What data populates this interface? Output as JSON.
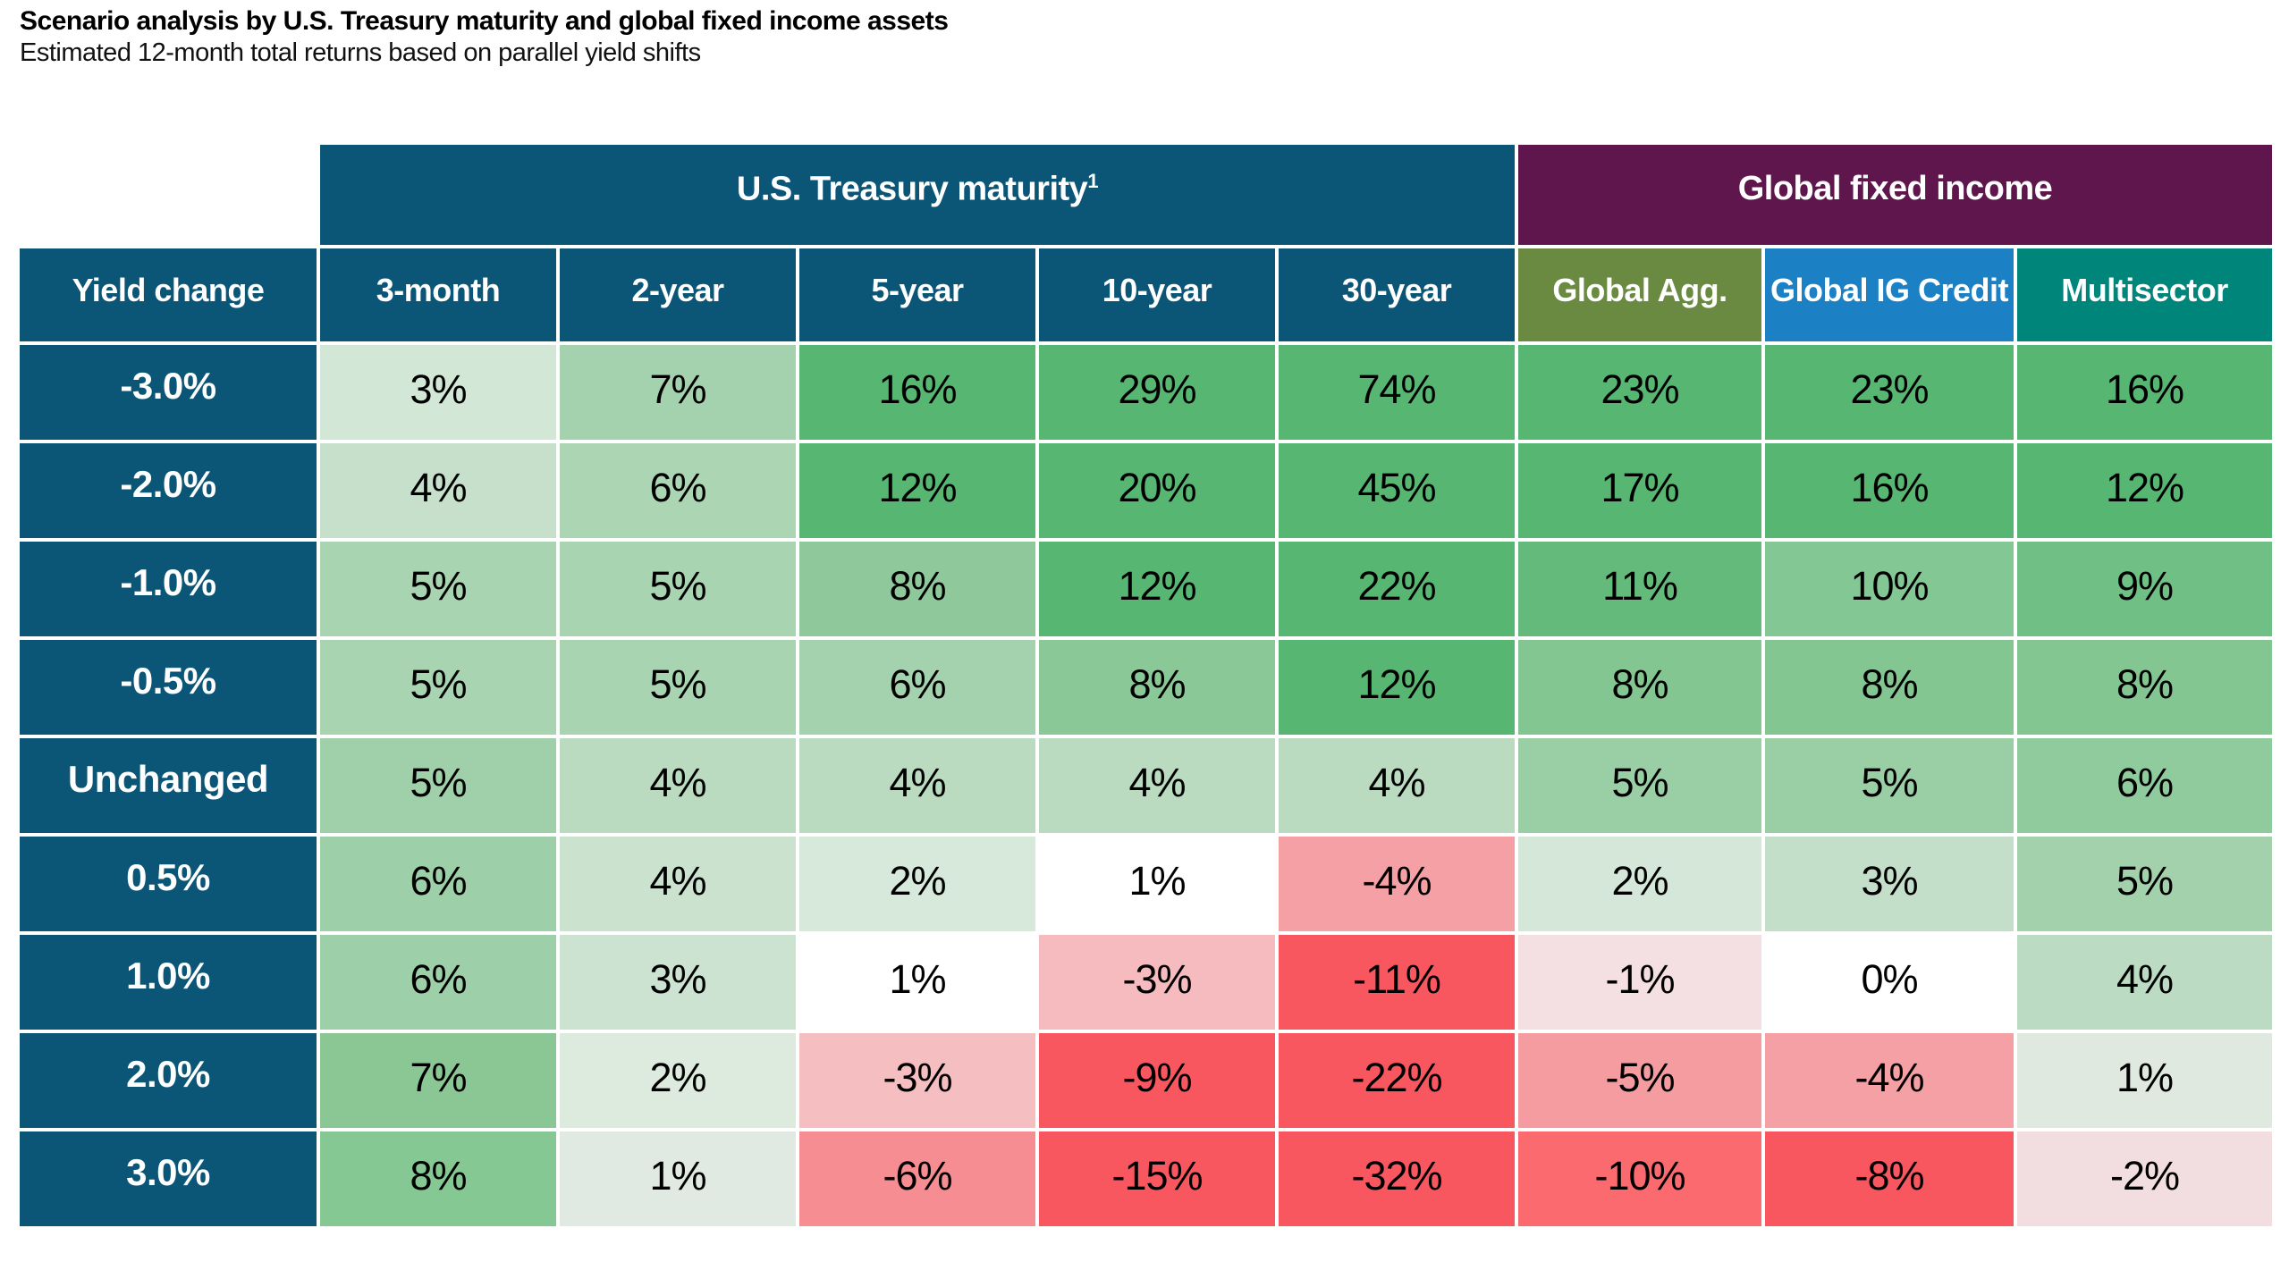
{
  "page": {
    "background_color": "#FFFFFF"
  },
  "title": "Scenario analysis by U.S. Treasury maturity and global fixed income assets",
  "subtitle": "Estimated 12-month total returns based on parallel yield shifts",
  "chart_data": {
    "type": "heatmap",
    "title": "Scenario analysis by U.S. Treasury maturity and global fixed income assets",
    "subtitle": "Estimated 12-month total returns based on parallel yield shifts",
    "corner_header": "Yield change",
    "group_headers": [
      {
        "label": "U.S. Treasury maturity",
        "superscript": "1",
        "colspan": 5,
        "color": "#0B5577"
      },
      {
        "label": "Global fixed income",
        "superscript": "",
        "colspan": 3,
        "color": "#5E164D"
      }
    ],
    "columns": [
      {
        "label": "3-month",
        "header_color": "#0B5577"
      },
      {
        "label": "2-year",
        "header_color": "#0B5577"
      },
      {
        "label": "5-year",
        "header_color": "#0B5577"
      },
      {
        "label": "10-year",
        "header_color": "#0B5577"
      },
      {
        "label": "30-year",
        "header_color": "#0B5577"
      },
      {
        "label": "Global Agg.",
        "header_color": "#6B8A41"
      },
      {
        "label": "Global IG Credit",
        "header_color": "#1B80C4"
      },
      {
        "label": "Multisector",
        "header_color": "#00857B"
      }
    ],
    "row_label_color": "#0B5577",
    "color_scale": {
      "positive_max_color": "#57B671",
      "neutral_color": "#FFFFFF",
      "negative_max_color": "#F9575F"
    },
    "rows": [
      {
        "label": "-3.0%",
        "values": [
          3,
          7,
          16,
          29,
          74,
          23,
          23,
          16
        ],
        "display": [
          "3%",
          "7%",
          "16%",
          "29%",
          "74%",
          "23%",
          "23%",
          "16%"
        ],
        "cell_colors": [
          "#D2E7D6",
          "#A5D2AE",
          "#57B671",
          "#57B671",
          "#57B671",
          "#57B671",
          "#57B671",
          "#57B671"
        ]
      },
      {
        "label": "-2.0%",
        "values": [
          4,
          6,
          12,
          20,
          45,
          17,
          16,
          12
        ],
        "display": [
          "4%",
          "6%",
          "12%",
          "20%",
          "45%",
          "17%",
          "16%",
          "12%"
        ],
        "cell_colors": [
          "#C6E0CB",
          "#ABD5B3",
          "#57B671",
          "#57B671",
          "#57B671",
          "#57B671",
          "#57B671",
          "#57B671"
        ]
      },
      {
        "label": "-1.0%",
        "values": [
          5,
          5,
          8,
          12,
          22,
          11,
          10,
          9
        ],
        "display": [
          "5%",
          "5%",
          "8%",
          "12%",
          "22%",
          "11%",
          "10%",
          "9%"
        ],
        "cell_colors": [
          "#A9D4B2",
          "#A9D4B2",
          "#8FC99B",
          "#57B671",
          "#57B671",
          "#63BA7A",
          "#82C794",
          "#70BF85"
        ]
      },
      {
        "label": "-0.5%",
        "values": [
          5,
          5,
          6,
          8,
          12,
          8,
          8,
          8
        ],
        "display": [
          "5%",
          "5%",
          "6%",
          "8%",
          "12%",
          "8%",
          "8%",
          "8%"
        ],
        "cell_colors": [
          "#A9D4B2",
          "#A9D4B2",
          "#A5D2AE",
          "#8BC897",
          "#57B671",
          "#84C691",
          "#84C691",
          "#84C691"
        ]
      },
      {
        "label": "Unchanged",
        "values": [
          5,
          4,
          4,
          4,
          4,
          5,
          5,
          6
        ],
        "display": [
          "5%",
          "4%",
          "4%",
          "4%",
          "4%",
          "5%",
          "5%",
          "6%"
        ],
        "cell_colors": [
          "#A0D0AA",
          "#BADBC0",
          "#BADBC0",
          "#BADBC0",
          "#BADBC0",
          "#9ACFA6",
          "#9ACFA6",
          "#8FCB9C"
        ]
      },
      {
        "label": "0.5%",
        "values": [
          6,
          4,
          2,
          1,
          -4,
          2,
          3,
          5
        ],
        "display": [
          "6%",
          "4%",
          "2%",
          "1%",
          "-4%",
          "2%",
          "3%",
          "5%"
        ],
        "cell_colors": [
          "#9DD0A8",
          "#CBE2CF",
          "#D6E9DA",
          "#FFFFFF",
          "#F5A0A4",
          "#D4E7D8",
          "#C3DFC9",
          "#A2D1AC"
        ]
      },
      {
        "label": "1.0%",
        "values": [
          6,
          3,
          1,
          -3,
          -11,
          -1,
          0,
          4
        ],
        "display": [
          "6%",
          "3%",
          "1%",
          "-3%",
          "-11%",
          "-1%",
          "0%",
          "4%"
        ],
        "cell_colors": [
          "#9DD0A8",
          "#CBE3D0",
          "#FFFFFF",
          "#F5BBBE",
          "#F9575F",
          "#F4E0E2",
          "#FFFFFF",
          "#BBDCC2"
        ]
      },
      {
        "label": "2.0%",
        "values": [
          7,
          2,
          -3,
          -9,
          -22,
          -5,
          -4,
          1
        ],
        "display": [
          "7%",
          "2%",
          "-3%",
          "-9%",
          "-22%",
          "-5%",
          "-4%",
          "1%"
        ],
        "cell_colors": [
          "#8BC795",
          "#DCEBDE",
          "#F5BEC1",
          "#F9575F",
          "#F9575F",
          "#F59CA0",
          "#F5A0A4",
          "#DFE9E0"
        ]
      },
      {
        "label": "3.0%",
        "values": [
          8,
          1,
          -6,
          -15,
          -32,
          -10,
          -8,
          -2
        ],
        "display": [
          "8%",
          "1%",
          "-6%",
          "-15%",
          "-32%",
          "-10%",
          "-8%",
          "-2%"
        ],
        "cell_colors": [
          "#85C893",
          "#E0EAE2",
          "#F68D92",
          "#F9575F",
          "#F9575F",
          "#FB6A6E",
          "#F9575F",
          "#F2DEE0"
        ]
      }
    ]
  }
}
